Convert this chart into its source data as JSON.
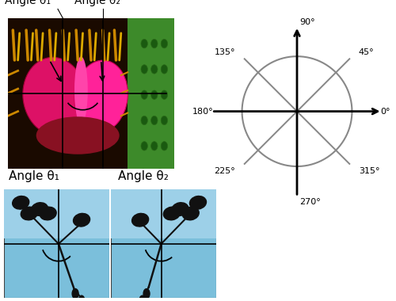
{
  "title_angle1": "Angle θ₁",
  "title_angle2": "Angle θ₂",
  "bg_color": "#ffffff",
  "circle_color": "#888888",
  "compass_fontsize": 8,
  "label_fontsize": 10,
  "compass_label_positions": {
    "0°": [
      1.52,
      0.0,
      "left",
      "center"
    ],
    "45°": [
      1.12,
      1.08,
      "left",
      "center"
    ],
    "90°": [
      0.05,
      1.55,
      "left",
      "bottom"
    ],
    "135°": [
      -1.12,
      1.08,
      "right",
      "center"
    ],
    "180°": [
      -1.52,
      0.0,
      "right",
      "center"
    ],
    "225°": [
      -1.12,
      -1.08,
      "right",
      "center"
    ],
    "270°": [
      0.05,
      -1.58,
      "left",
      "top"
    ],
    "315°": [
      1.12,
      -1.08,
      "left",
      "center"
    ]
  }
}
